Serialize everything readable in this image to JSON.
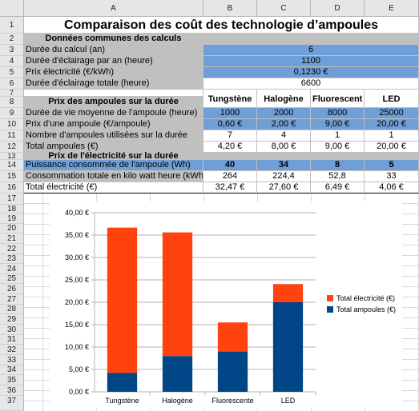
{
  "columns": [
    "A",
    "B",
    "C",
    "D",
    "E"
  ],
  "rows": [
    "1",
    "2",
    "3",
    "4",
    "5",
    "6",
    "7",
    "8",
    "9",
    "10",
    "11",
    "12",
    "13",
    "14",
    "15",
    "16",
    "17",
    "18",
    "19",
    "20",
    "21",
    "22",
    "23",
    "24",
    "25",
    "26",
    "27",
    "28",
    "29",
    "30",
    "31",
    "32",
    "33",
    "34",
    "35",
    "36",
    "37"
  ],
  "title": "Comparaison des coût des technologie d’ampoules",
  "common": {
    "heading": "Données communes des calculs",
    "duree_calcul_label": "Durée du calcul (an)",
    "duree_calcul": "6",
    "eclairage_an_label": "Durée d'éclairage par an (heure)",
    "eclairage_an": "1100",
    "prix_elec_label": "Prix électricité (€/kWh)",
    "prix_elec": "0,1230 €",
    "eclairage_total_label": "Durée d'éclairage totale (heure)",
    "eclairage_total": "6600"
  },
  "types": [
    "Tungstène",
    "Halogène",
    "Fluorescent",
    "LED"
  ],
  "bulbs": {
    "heading": "Prix des ampoules sur la durée",
    "vie_label": "Durée de vie moyenne de l'ampoule (heure)",
    "vie": [
      "1000",
      "2000",
      "8000",
      "25000"
    ],
    "prix_label": "Prix d'une ampoule (€/ampoule)",
    "prix": [
      "0,60 €",
      "2,00 €",
      "9,00 €",
      "20,00 €"
    ],
    "nombre_label": "Nombre d'ampoules utilisées sur la durée",
    "nombre": [
      "7",
      "4",
      "1",
      "1"
    ],
    "total_label": "Total ampoules (€)",
    "total": [
      "4,20 €",
      "8,00 €",
      "9,00 €",
      "20,00 €"
    ]
  },
  "elec": {
    "heading": "Prix de l'électricité sur la durée",
    "puissance_label": "Puissance consommée de l'ampoule (Wh)",
    "puissance": [
      "40",
      "34",
      "8",
      "5"
    ],
    "conso_label": "Consommation totale en kilo watt heure (kWh)",
    "conso": [
      "264",
      "224,4",
      "52,8",
      "33"
    ],
    "total_label": "Total électricité (€)",
    "total": [
      "32,47 €",
      "27,60 €",
      "6,49 €",
      "4,06 €"
    ]
  },
  "chart_data": {
    "type": "bar",
    "stacked": true,
    "categories": [
      "Tungstène",
      "Halogène",
      "Fluorescente",
      "LED"
    ],
    "series": [
      {
        "name": "Total ampoules (€)",
        "color": "#004586",
        "values": [
          4.2,
          8.0,
          9.0,
          20.0
        ]
      },
      {
        "name": "Total électricité (€)",
        "color": "#ff420e",
        "values": [
          32.47,
          27.6,
          6.49,
          4.06
        ]
      }
    ],
    "ylim": [
      0,
      40
    ],
    "yticks": [
      "0,00 €",
      "5,00 €",
      "10,00 €",
      "15,00 €",
      "20,00 €",
      "25,00 €",
      "30,00 €",
      "35,00 €",
      "40,00 €"
    ],
    "grid": true,
    "legend": "right"
  }
}
